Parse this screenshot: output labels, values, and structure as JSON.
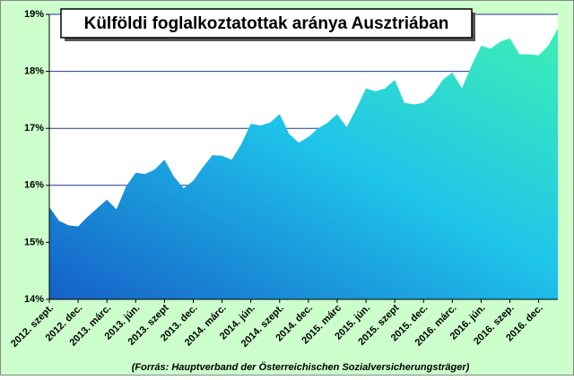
{
  "chart_data": {
    "type": "area",
    "title": "Külföldi foglalkoztatottak aránya Ausztriában",
    "source": "(Forrás: Hauptverband der Österreichischen  Sozialversicherungsträger)",
    "categories": [
      "2012. szept.",
      null,
      null,
      "2012. dec.",
      null,
      null,
      "2013. márc.",
      null,
      null,
      "2013. jún.",
      null,
      null,
      "2013. szept",
      null,
      null,
      "2013. dec.",
      null,
      null,
      "2014. márc.",
      null,
      null,
      "2014. jún.",
      null,
      null,
      "2014. szept.",
      null,
      null,
      "2014. dec.",
      null,
      null,
      "2015. márc",
      null,
      null,
      "2015. jún.",
      null,
      null,
      "2015. szept",
      null,
      null,
      "2015. dec.",
      null,
      null,
      "2016. márc.",
      null,
      null,
      "2016. jún.",
      null,
      null,
      "2016. szep.",
      null,
      null,
      "2016. dec.",
      null,
      null
    ],
    "values": [
      15.62,
      15.38,
      15.3,
      15.28,
      15.45,
      15.6,
      15.75,
      15.58,
      15.98,
      16.22,
      16.2,
      16.28,
      16.45,
      16.15,
      15.95,
      16.08,
      16.32,
      16.53,
      16.52,
      16.45,
      16.72,
      17.08,
      17.05,
      17.1,
      17.25,
      16.9,
      16.75,
      16.85,
      17.0,
      17.1,
      17.25,
      17.02,
      17.35,
      17.7,
      17.65,
      17.7,
      17.85,
      17.45,
      17.42,
      17.45,
      17.6,
      17.85,
      17.98,
      17.7,
      18.1,
      18.45,
      18.4,
      18.52,
      18.58,
      18.3,
      18.3,
      18.28,
      18.45,
      18.75
    ],
    "ylim": [
      14,
      19
    ],
    "yticks": [
      {
        "value": 14,
        "label": "14%"
      },
      {
        "value": 15,
        "label": "15%"
      },
      {
        "value": 16,
        "label": "16%"
      },
      {
        "value": 17,
        "label": "17%"
      },
      {
        "value": 18,
        "label": "18%"
      },
      {
        "value": 19,
        "label": "19%"
      }
    ],
    "grid": true
  }
}
